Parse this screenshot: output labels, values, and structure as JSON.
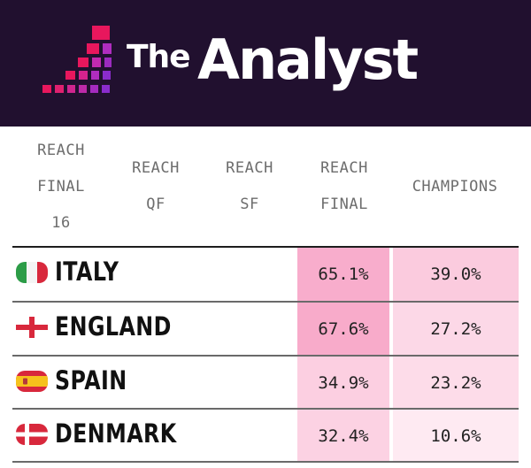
{
  "brand": {
    "word1": "The",
    "word2": "Analyst"
  },
  "colors": {
    "header_bg": "#21102f",
    "logo_pink": "#e8175d",
    "logo_purple": "#9c2bbf"
  },
  "chart_data": {
    "type": "table",
    "columns": [
      {
        "key": "reach_final16",
        "label_lines": [
          "REACH",
          "FINAL",
          "16"
        ]
      },
      {
        "key": "reach_qf",
        "label_lines": [
          "REACH",
          "QF"
        ]
      },
      {
        "key": "reach_sf",
        "label_lines": [
          "REACH",
          "SF"
        ]
      },
      {
        "key": "reach_final",
        "label_lines": [
          "REACH",
          "FINAL"
        ]
      },
      {
        "key": "champions",
        "label_lines": [
          "CHAMPIONS"
        ]
      }
    ],
    "rows": [
      {
        "team": "ITALY",
        "flag": "italy-flag-icon",
        "reach_final": "65.1%",
        "champions": "39.0%",
        "reach_final_value": 65.1,
        "champions_value": 39.0
      },
      {
        "team": "ENGLAND",
        "flag": "england-flag-icon",
        "reach_final": "67.6%",
        "champions": "27.2%",
        "reach_final_value": 67.6,
        "champions_value": 27.2
      },
      {
        "team": "SPAIN",
        "flag": "spain-flag-icon",
        "reach_final": "34.9%",
        "champions": "23.2%",
        "reach_final_value": 34.9,
        "champions_value": 23.2
      },
      {
        "team": "DENMARK",
        "flag": "denmark-flag-icon",
        "reach_final": "32.4%",
        "champions": "10.6%",
        "reach_final_value": 32.4,
        "champions_value": 10.6
      }
    ]
  }
}
